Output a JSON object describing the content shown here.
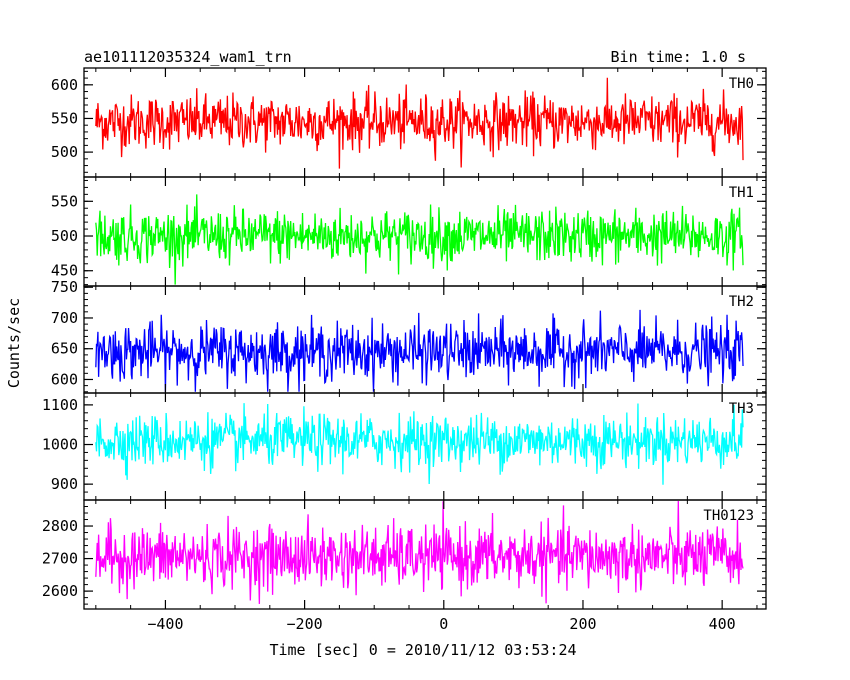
{
  "header": {
    "left_title": "ae101112035324_wam1_trn",
    "right_title": "Bin time: 1.0 s"
  },
  "chart_data": {
    "type": "line",
    "xlabel": "Time [sec] 0 = 2010/11/12 03:53:24",
    "ylabel": "Counts/sec",
    "xlim": [
      -517,
      463
    ],
    "x_ticks": [
      -400,
      -200,
      0,
      200,
      400
    ],
    "x_tick_labels": [
      "−400",
      "−200",
      "0",
      "200",
      "400"
    ],
    "data_x_range": [
      -500,
      430
    ],
    "grid": false,
    "panels": [
      {
        "name": "TH0",
        "color": "#ff0000",
        "ylim": [
          463,
          625
        ],
        "y_ticks": [
          500,
          550,
          600
        ],
        "mean": 545,
        "sigma": 20,
        "range": [
          465,
          625
        ]
      },
      {
        "name": "TH1",
        "color": "#00ff00",
        "ylim": [
          428,
          585
        ],
        "y_ticks": [
          450,
          500,
          550
        ],
        "mean": 500,
        "sigma": 19,
        "range": [
          430,
          580
        ]
      },
      {
        "name": "TH2",
        "color": "#0000ff",
        "ylim": [
          578,
          752
        ],
        "y_ticks": [
          600,
          650,
          700,
          750
        ],
        "mean": 645,
        "sigma": 23,
        "range": [
          580,
          750
        ]
      },
      {
        "name": "TH3",
        "color": "#00ffff",
        "ylim": [
          860,
          1130
        ],
        "y_ticks": [
          900,
          1000,
          1100
        ],
        "mean": 1010,
        "sigma": 33,
        "range": [
          875,
          1130
        ]
      },
      {
        "name": "TH0123",
        "color": "#ff00ff",
        "ylim": [
          2545,
          2880
        ],
        "y_ticks": [
          2600,
          2700,
          2800
        ],
        "mean": 2705,
        "sigma": 48,
        "range": [
          2545,
          2880
        ]
      }
    ]
  }
}
